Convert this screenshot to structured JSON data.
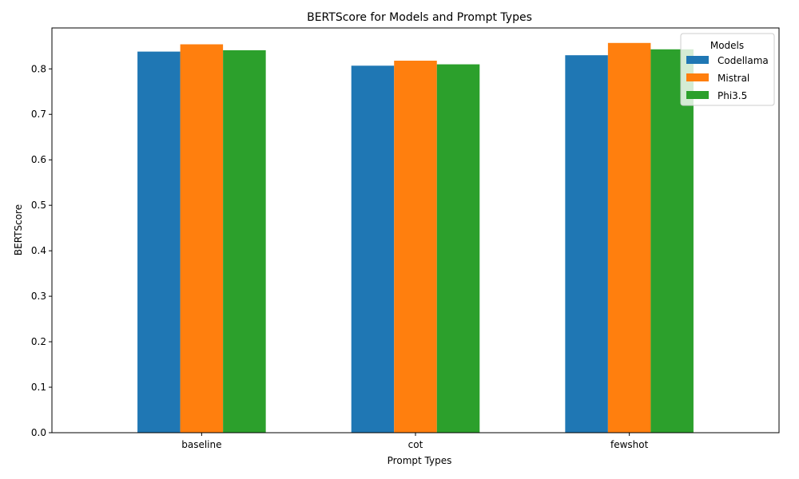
{
  "chart_data": {
    "type": "bar",
    "title": "BERTScore for Models and Prompt Types",
    "xlabel": "Prompt Types",
    "ylabel": "BERTScore",
    "categories": [
      "baseline",
      "cot",
      "fewshot"
    ],
    "series": [
      {
        "name": "Codellama",
        "color": "#1f77b4",
        "values": [
          0.838,
          0.807,
          0.83
        ]
      },
      {
        "name": "Mistral",
        "color": "#ff7f0e",
        "values": [
          0.854,
          0.818,
          0.857
        ]
      },
      {
        "name": "Phi3.5",
        "color": "#2ca02c",
        "values": [
          0.841,
          0.81,
          0.843
        ]
      }
    ],
    "ylim": [
      0,
      0.89
    ],
    "yticks": [
      "0.0",
      "0.1",
      "0.2",
      "0.3",
      "0.4",
      "0.5",
      "0.6",
      "0.7",
      "0.8"
    ],
    "grid": false,
    "legend": {
      "title": "Models",
      "placement": "top-right"
    }
  }
}
